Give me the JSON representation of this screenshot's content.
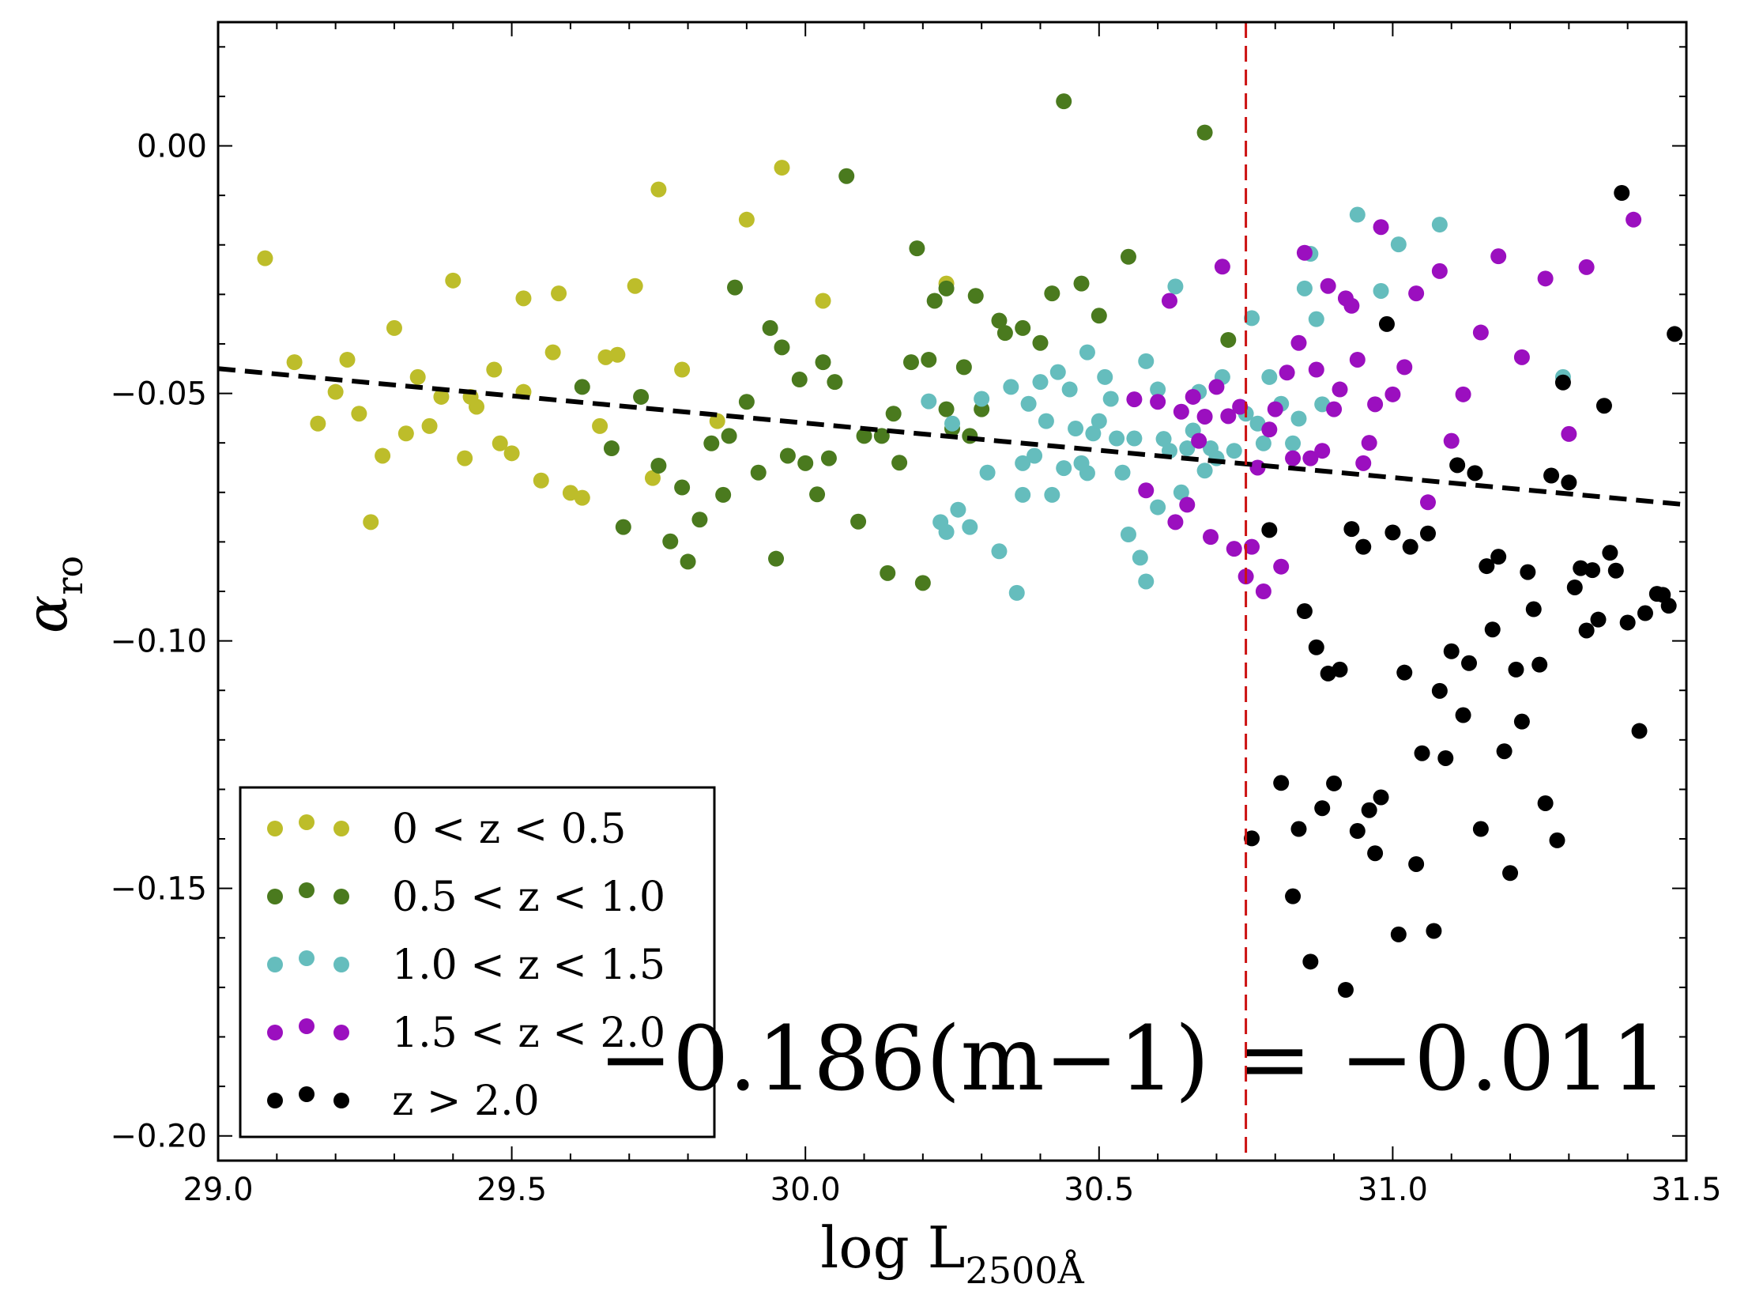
{
  "chart_data": {
    "type": "scatter",
    "title": "",
    "xlabel": "log L",
    "xlabel_sub": "2500Å",
    "ylabel": "α",
    "ylabel_sub": "ro",
    "xlim": [
      29.0,
      31.5
    ],
    "ylim": [
      -0.205,
      0.025
    ],
    "grid": false,
    "x_ticks": [
      29.0,
      29.5,
      30.0,
      30.5,
      31.0,
      31.5
    ],
    "x_tick_labels": [
      "29.0",
      "29.5",
      "30.0",
      "30.5",
      "31.0",
      "31.5"
    ],
    "y_ticks": [
      0.0,
      -0.05,
      -0.1,
      -0.15,
      -0.2
    ],
    "y_tick_labels": [
      "0.00",
      "−0.05",
      "−0.10",
      "−0.15",
      "−0.20"
    ],
    "legend_position": "lower-left",
    "annotation": "−0.186(m−1) = −0.011",
    "fit_line": {
      "x": [
        29.0,
        31.5
      ],
      "y": [
        -0.045,
        -0.0725
      ],
      "color": "#000000",
      "style": "dashed"
    },
    "vline": {
      "x": 30.75,
      "color": "#cc1111",
      "style": "dashed"
    },
    "series": [
      {
        "name": "0 < z < 0.5",
        "color": "#bdbd2a",
        "x": [
          29.08,
          29.13,
          29.17,
          29.2,
          29.22,
          29.24,
          29.26,
          29.28,
          29.3,
          29.32,
          29.34,
          29.36,
          29.38,
          29.4,
          29.42,
          29.43,
          29.44,
          29.47,
          29.48,
          29.5,
          29.52,
          29.52,
          29.55,
          29.57,
          29.58,
          29.6,
          29.62,
          29.65,
          29.66,
          29.68,
          29.71,
          29.74,
          29.75,
          29.79,
          29.85,
          29.9,
          29.96,
          30.03,
          30.24
        ],
        "y": [
          -0.0227,
          -0.0437,
          -0.0561,
          -0.0497,
          -0.0432,
          -0.0541,
          -0.076,
          -0.0626,
          -0.0368,
          -0.0581,
          -0.0467,
          -0.0566,
          -0.0507,
          -0.0272,
          -0.0631,
          -0.0507,
          -0.0527,
          -0.0452,
          -0.0601,
          -0.0621,
          -0.0308,
          -0.0497,
          -0.0676,
          -0.0417,
          -0.0298,
          -0.0701,
          -0.0711,
          -0.0566,
          -0.0427,
          -0.0422,
          -0.0283,
          -0.0671,
          -0.0088,
          -0.0452,
          -0.0556,
          -0.0149,
          -0.0044,
          -0.0313,
          -0.0278
        ]
      },
      {
        "name": "0.5 < z < 1.0",
        "color": "#4a7a1e",
        "x": [
          29.62,
          29.67,
          29.69,
          29.72,
          29.75,
          29.77,
          29.79,
          29.8,
          29.82,
          29.84,
          29.86,
          29.87,
          29.88,
          29.9,
          29.92,
          29.94,
          29.95,
          29.96,
          29.97,
          29.99,
          30.0,
          30.02,
          30.03,
          30.04,
          30.05,
          30.07,
          30.09,
          30.1,
          30.13,
          30.14,
          30.15,
          30.16,
          30.18,
          30.19,
          30.2,
          30.21,
          30.22,
          30.24,
          30.24,
          30.25,
          30.27,
          30.28,
          30.29,
          30.3,
          30.33,
          30.34,
          30.37,
          30.4,
          30.42,
          30.44,
          30.47,
          30.5,
          30.55,
          30.68,
          30.72
        ],
        "y": [
          -0.0487,
          -0.0611,
          -0.077,
          -0.0507,
          -0.0646,
          -0.0799,
          -0.069,
          -0.084,
          -0.0755,
          -0.0601,
          -0.0705,
          -0.0586,
          -0.0286,
          -0.0517,
          -0.066,
          -0.0368,
          -0.0834,
          -0.0407,
          -0.0626,
          -0.0472,
          -0.0641,
          -0.0704,
          -0.0437,
          -0.0631,
          -0.0477,
          -0.0061,
          -0.0759,
          -0.0586,
          -0.0586,
          -0.0863,
          -0.0541,
          -0.064,
          -0.0437,
          -0.0207,
          -0.0883,
          -0.0432,
          -0.0313,
          -0.0532,
          -0.0288,
          -0.0571,
          -0.0447,
          -0.0586,
          -0.0303,
          -0.0532,
          -0.0353,
          -0.0378,
          -0.0368,
          -0.0398,
          -0.0298,
          0.009,
          -0.0278,
          -0.0343,
          -0.0224,
          0.0027,
          -0.0392
        ]
      },
      {
        "name": "1.0 < z < 1.5",
        "color": "#65bdbd",
        "x": [
          30.21,
          30.23,
          30.24,
          30.25,
          30.26,
          30.28,
          30.3,
          30.31,
          30.33,
          30.35,
          30.36,
          30.37,
          30.37,
          30.38,
          30.39,
          30.4,
          30.41,
          30.42,
          30.43,
          30.44,
          30.45,
          30.46,
          30.47,
          30.48,
          30.48,
          30.49,
          30.5,
          30.51,
          30.52,
          30.53,
          30.54,
          30.55,
          30.56,
          30.57,
          30.58,
          30.58,
          30.6,
          30.6,
          30.61,
          30.62,
          30.63,
          30.64,
          30.65,
          30.66,
          30.67,
          30.68,
          30.69,
          30.7,
          30.71,
          30.73,
          30.75,
          30.76,
          30.77,
          30.78,
          30.79,
          30.81,
          30.83,
          30.84,
          30.85,
          30.86,
          30.87,
          30.88,
          30.94,
          30.98,
          31.01,
          31.08,
          31.29
        ],
        "y": [
          -0.0516,
          -0.076,
          -0.078,
          -0.0561,
          -0.0735,
          -0.077,
          -0.0511,
          -0.066,
          -0.0819,
          -0.0487,
          -0.0903,
          -0.0705,
          -0.0641,
          -0.0521,
          -0.0626,
          -0.0477,
          -0.0556,
          -0.0705,
          -0.0457,
          -0.0651,
          -0.0492,
          -0.0571,
          -0.0641,
          -0.0661,
          -0.0417,
          -0.0581,
          -0.0556,
          -0.0467,
          -0.0511,
          -0.0591,
          -0.066,
          -0.0785,
          -0.0591,
          -0.0832,
          -0.0435,
          -0.088,
          -0.0492,
          -0.073,
          -0.0592,
          -0.0616,
          -0.0284,
          -0.07,
          -0.0611,
          -0.0575,
          -0.0497,
          -0.0656,
          -0.0611,
          -0.0631,
          -0.0467,
          -0.0616,
          -0.0541,
          -0.0348,
          -0.0561,
          -0.0601,
          -0.0467,
          -0.0521,
          -0.0601,
          -0.0551,
          -0.0288,
          -0.0218,
          -0.035,
          -0.0522,
          -0.0139,
          -0.0293,
          -0.0199,
          -0.0159,
          -0.0467
        ]
      },
      {
        "name": "1.5 < z < 2.0",
        "color": "#9b0fbf",
        "x": [
          30.56,
          30.58,
          30.6,
          30.62,
          30.63,
          30.64,
          30.65,
          30.66,
          30.67,
          30.68,
          30.69,
          30.7,
          30.71,
          30.72,
          30.73,
          30.74,
          30.75,
          30.76,
          30.77,
          30.78,
          30.79,
          30.8,
          30.81,
          30.82,
          30.83,
          30.84,
          30.85,
          30.86,
          30.87,
          30.88,
          30.89,
          30.9,
          30.91,
          30.92,
          30.93,
          30.94,
          30.95,
          30.96,
          30.97,
          30.98,
          31.0,
          31.02,
          31.04,
          31.06,
          31.08,
          31.1,
          31.12,
          31.15,
          31.18,
          31.22,
          31.26,
          31.3,
          31.33,
          31.41
        ],
        "y": [
          -0.0512,
          -0.0696,
          -0.0517,
          -0.0313,
          -0.076,
          -0.0537,
          -0.0725,
          -0.0507,
          -0.0596,
          -0.0547,
          -0.079,
          -0.0487,
          -0.0244,
          -0.0546,
          -0.0814,
          -0.0527,
          -0.087,
          -0.081,
          -0.065,
          -0.09,
          -0.0573,
          -0.0532,
          -0.085,
          -0.0458,
          -0.0631,
          -0.0398,
          -0.0216,
          -0.0631,
          -0.0452,
          -0.0616,
          -0.0283,
          -0.0532,
          -0.0492,
          -0.0308,
          -0.0323,
          -0.0432,
          -0.0641,
          -0.06,
          -0.0522,
          -0.0164,
          -0.0502,
          -0.0447,
          -0.0298,
          -0.072,
          -0.0253,
          -0.0596,
          -0.0502,
          -0.0377,
          -0.0223,
          -0.0427,
          -0.0268,
          -0.0582,
          -0.0245,
          -0.0149
        ]
      },
      {
        "name": "z > 2.0",
        "color": "#000000",
        "x": [
          30.76,
          30.79,
          30.81,
          30.83,
          30.84,
          30.85,
          30.86,
          30.87,
          30.88,
          30.89,
          30.9,
          30.91,
          30.92,
          30.93,
          30.94,
          30.95,
          30.96,
          30.97,
          30.98,
          30.99,
          31.0,
          31.01,
          31.02,
          31.03,
          31.04,
          31.05,
          31.06,
          31.07,
          31.08,
          31.09,
          31.1,
          31.11,
          31.12,
          31.13,
          31.14,
          31.15,
          31.16,
          31.17,
          31.18,
          31.19,
          31.2,
          31.21,
          31.22,
          31.23,
          31.24,
          31.25,
          31.26,
          31.27,
          31.28,
          31.29,
          31.3,
          31.31,
          31.32,
          31.33,
          31.34,
          31.35,
          31.36,
          31.37,
          31.38,
          31.39,
          31.4,
          31.42,
          31.43,
          31.45,
          31.46,
          31.47,
          31.48
        ],
        "y": [
          -0.1399,
          -0.0776,
          -0.1287,
          -0.1516,
          -0.138,
          -0.094,
          -0.1648,
          -0.1013,
          -0.1338,
          -0.1066,
          -0.1288,
          -0.1058,
          -0.1705,
          -0.0774,
          -0.1384,
          -0.081,
          -0.1342,
          -0.1429,
          -0.1316,
          -0.036,
          -0.0781,
          -0.1593,
          -0.1064,
          -0.081,
          -0.1451,
          -0.1227,
          -0.0783,
          -0.1586,
          -0.1101,
          -0.1237,
          -0.1021,
          -0.0645,
          -0.115,
          -0.1045,
          -0.0661,
          -0.138,
          -0.0849,
          -0.0977,
          -0.083,
          -0.1223,
          -0.1469,
          -0.1058,
          -0.1163,
          -0.0861,
          -0.0936,
          -0.1048,
          -0.1328,
          -0.0666,
          -0.1403,
          -0.0478,
          -0.068,
          -0.0892,
          -0.0853,
          -0.0979,
          -0.0857,
          -0.0957,
          -0.0525,
          -0.0822,
          -0.0858,
          -0.0095,
          -0.0963,
          -0.1182,
          -0.0944,
          -0.0905,
          -0.0907,
          -0.0929,
          -0.038
        ]
      }
    ]
  }
}
